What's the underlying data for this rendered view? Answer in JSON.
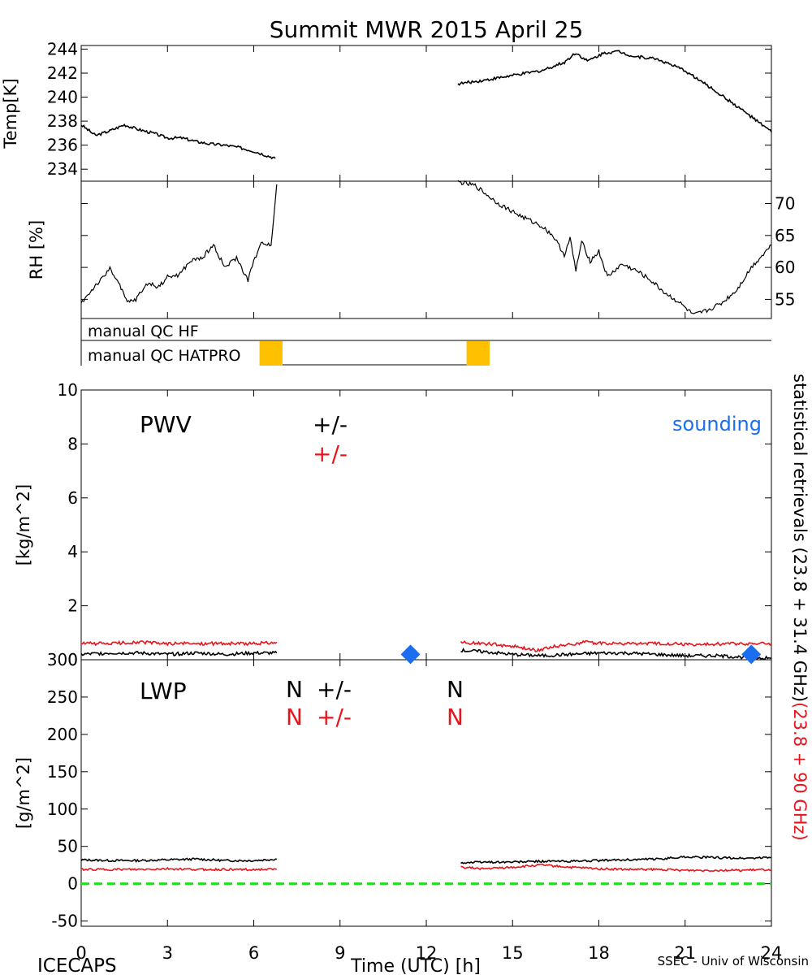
{
  "title": "Summit MWR 2015 April 25",
  "footer": {
    "left": "ICECAPS",
    "center": "Time (UTC) [h]",
    "right": "SSEC - Univ of Wisconsin"
  },
  "colors": {
    "black_series": "#000000",
    "red_series": "#e8141c",
    "sounding": "#1b6ef0",
    "qc_flag": "#ffc000",
    "zero_line": "#22dd22"
  },
  "qc": {
    "row1_label": "manual QC HF",
    "row2_label": "manual QC HATPRO",
    "flags": [
      [
        6.2,
        7.0
      ],
      [
        13.4,
        14.2
      ]
    ]
  },
  "right_axis_label": {
    "black_part": "statistical retrievals (23.8 + 31.4 GHz)",
    "red_part": "(23.8 + 90 GHz)"
  },
  "chart_data": [
    {
      "id": "temp",
      "type": "line",
      "ylabel": "Temp[K]",
      "xlim": [
        0,
        24
      ],
      "ylim": [
        233,
        244.3
      ],
      "yticks": [
        234,
        236,
        238,
        240,
        242,
        244
      ],
      "yaxis_side": "left",
      "series": [
        {
          "color": "black",
          "segments": [
            {
              "x": [
                0,
                0.5,
                1.0,
                1.5,
                2.0,
                2.5,
                3.0,
                3.5,
                4.0,
                4.5,
                5.0,
                5.5,
                6.0,
                6.5,
                6.75
              ],
              "y": [
                237.7,
                236.8,
                237.2,
                237.7,
                237.3,
                237.0,
                236.6,
                236.6,
                236.3,
                236.1,
                236.0,
                235.8,
                235.5,
                235.1,
                234.9
              ]
            },
            {
              "x": [
                13.1,
                14,
                15,
                16,
                16.8,
                17.2,
                17.6,
                18.2,
                18.7,
                19.2,
                20,
                21,
                22,
                23,
                24
              ],
              "y": [
                241.1,
                241.4,
                241.8,
                242.2,
                242.9,
                243.7,
                243.0,
                243.7,
                243.8,
                243.4,
                243.2,
                242.2,
                240.6,
                238.9,
                237.1
              ]
            }
          ]
        }
      ]
    },
    {
      "id": "rh",
      "type": "line",
      "ylabel": "RH [%]",
      "xlim": [
        0,
        24
      ],
      "ylim": [
        52,
        73.5
      ],
      "yticks": [
        55,
        60,
        65,
        70
      ],
      "yaxis_side": "right",
      "series": [
        {
          "color": "black",
          "segments": [
            {
              "x": [
                0,
                0.5,
                0.8,
                1.0,
                1.3,
                1.6,
                1.9,
                2.3,
                2.7,
                3.0,
                3.4,
                3.8,
                4.2,
                4.6,
                5.0,
                5.4,
                5.8,
                6.0,
                6.3,
                6.6,
                6.8
              ],
              "y": [
                54.4,
                57.2,
                58.5,
                60.0,
                57.5,
                54.5,
                55.0,
                57.5,
                57.0,
                58.5,
                58.8,
                61.0,
                61.5,
                63.5,
                60.0,
                61.5,
                58.0,
                61.0,
                64.0,
                63.5,
                73.0
              ]
            },
            {
              "x": [
                13.1,
                13.7,
                14.5,
                15.3,
                16.0,
                16.4,
                16.8,
                17.0,
                17.2,
                17.4,
                17.7,
                18.0,
                18.3,
                18.8,
                19.3,
                19.8,
                20.3,
                20.8,
                21.3,
                21.8,
                22.3,
                22.8,
                23.3,
                24
              ],
              "y": [
                73.4,
                72.8,
                70.0,
                68.0,
                66.5,
                65.0,
                62.0,
                64.5,
                59.5,
                64.0,
                61.0,
                62.5,
                58.5,
                60.5,
                59.5,
                58.0,
                56.0,
                54.5,
                52.5,
                53.3,
                54.5,
                56.5,
                60.0,
                63.5
              ]
            }
          ]
        }
      ]
    },
    {
      "id": "pwv",
      "type": "line",
      "label": "PWV",
      "ylabel": "[kg/m^2]",
      "xlim": [
        0,
        24
      ],
      "ylim": [
        0,
        10
      ],
      "yticks": [
        0,
        2,
        4,
        6,
        8,
        10
      ],
      "yaxis_side": "left",
      "annotations": {
        "black_pm": "+/-",
        "red_pm": "+/-",
        "sounding_label": "sounding"
      },
      "series": [
        {
          "color": "black",
          "segments": [
            {
              "x": [
                0,
                1,
                2,
                3,
                4,
                5,
                6,
                6.8
              ],
              "y": [
                0.2,
                0.25,
                0.25,
                0.2,
                0.25,
                0.2,
                0.25,
                0.25
              ]
            },
            {
              "x": [
                13.2,
                14,
                15,
                16,
                17,
                18,
                19,
                20,
                21,
                22,
                23,
                24
              ],
              "y": [
                0.35,
                0.3,
                0.2,
                0.15,
                0.2,
                0.25,
                0.25,
                0.2,
                0.15,
                0.15,
                0.1,
                0.05
              ]
            }
          ]
        },
        {
          "color": "red",
          "segments": [
            {
              "x": [
                0,
                1,
                2,
                3,
                4,
                5,
                6,
                6.8
              ],
              "y": [
                0.6,
                0.6,
                0.65,
                0.6,
                0.6,
                0.6,
                0.6,
                0.65
              ]
            },
            {
              "x": [
                13.2,
                14,
                15,
                15.8,
                16.5,
                17.5,
                18.5,
                19.5,
                20.5,
                21.5,
                22.5,
                23.5,
                24
              ],
              "y": [
                0.65,
                0.6,
                0.5,
                0.35,
                0.5,
                0.65,
                0.6,
                0.6,
                0.6,
                0.55,
                0.6,
                0.6,
                0.6
              ]
            }
          ]
        }
      ],
      "markers": {
        "name": "sounding",
        "x": [
          11.45,
          23.3
        ],
        "y": [
          0.2,
          0.2
        ]
      }
    },
    {
      "id": "lwp",
      "type": "line",
      "label": "LWP",
      "ylabel": "[g/m^2]",
      "xlabel": "Time (UTC) [h]",
      "xlim": [
        0,
        24
      ],
      "ylim": [
        -57,
        300
      ],
      "yticks": [
        -50,
        0,
        50,
        100,
        150,
        200,
        250,
        300
      ],
      "xticks": [
        0,
        3,
        6,
        9,
        12,
        15,
        18,
        21,
        24
      ],
      "yaxis_side": "left",
      "zero_line": 0,
      "annotations": {
        "n_mark": "N",
        "black_pm": "+/-",
        "red_pm": "+/-"
      },
      "series": [
        {
          "color": "black",
          "segments": [
            {
              "x": [
                0,
                1,
                2,
                3,
                4,
                5,
                6,
                6.8
              ],
              "y": [
                32,
                31,
                31,
                32,
                33,
                31,
                31,
                33
              ]
            },
            {
              "x": [
                13.2,
                14,
                15,
                16,
                17,
                18,
                19,
                20,
                21,
                22,
                23,
                24
              ],
              "y": [
                28,
                29,
                29,
                30,
                30,
                31,
                32,
                33,
                36,
                35,
                34,
                35
              ]
            }
          ]
        },
        {
          "color": "red",
          "segments": [
            {
              "x": [
                0,
                1,
                2,
                3,
                4,
                5,
                6,
                6.8
              ],
              "y": [
                19,
                19,
                19,
                20,
                19,
                19,
                19,
                19
              ]
            },
            {
              "x": [
                13.2,
                14,
                15,
                16,
                17,
                18,
                19,
                20,
                21,
                22,
                23,
                24
              ],
              "y": [
                22,
                20,
                22,
                25,
                22,
                20,
                19,
                19,
                18,
                18,
                18,
                19
              ]
            }
          ]
        }
      ]
    }
  ]
}
